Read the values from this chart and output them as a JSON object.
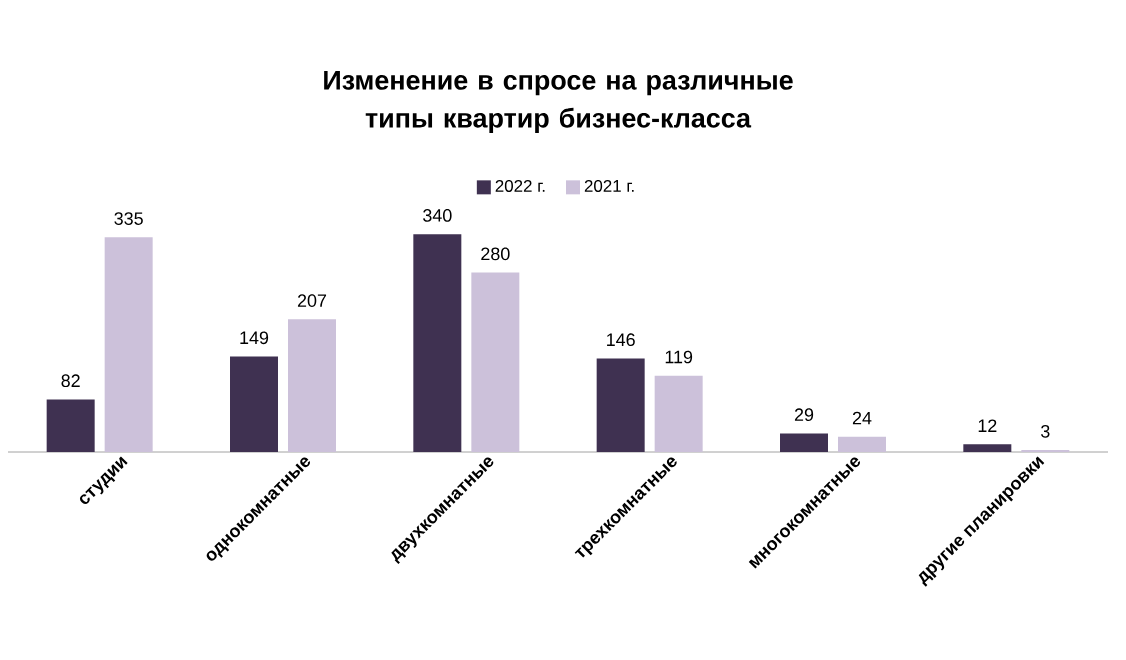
{
  "chart_data": {
    "type": "bar",
    "title": "Изменение в спросе на различные типы квартир бизнес-класса",
    "categories": [
      "студии",
      "однокомнатные",
      "двухкомнатные",
      "трехкомнатные",
      "многокомнатные",
      "другие планировки"
    ],
    "series": [
      {
        "name": "2022 г.",
        "color": "#3f3151",
        "values": [
          82,
          149,
          340,
          146,
          29,
          12
        ]
      },
      {
        "name": "2021 г.",
        "color": "#ccc1da",
        "values": [
          335,
          207,
          280,
          119,
          24,
          3
        ]
      }
    ],
    "data_labels": true,
    "legend": "top"
  }
}
